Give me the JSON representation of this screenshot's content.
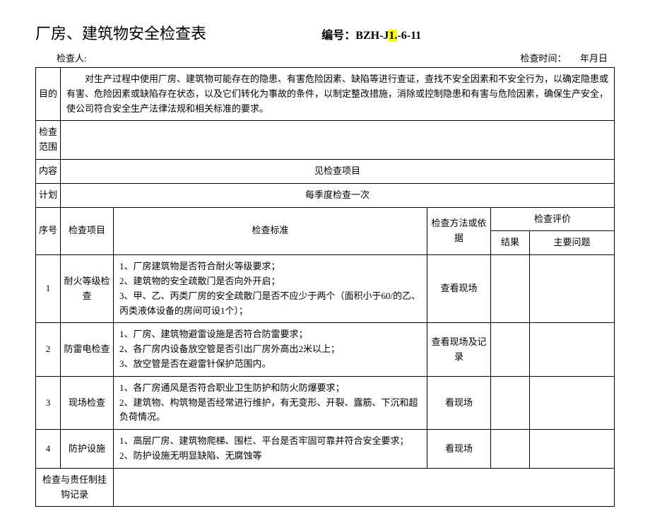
{
  "title": "厂房、建筑物安全检查表",
  "doc_number_label": "编号：",
  "doc_number_prefix": "BZH-J",
  "doc_number_highlight": "1.",
  "doc_number_suffix": "-6-11",
  "sub_header": {
    "inspector_label": "检查人:",
    "time_label": "检查时间：",
    "date_placeholder": "年月日"
  },
  "purpose": {
    "label": "目的",
    "text": "对生产过程中使用厂房、建筑物可能存在的隐患、有害危险因素、缺陷等进行查证，查找不安全因素和不安全行为，以确定隐患或有害、危险因素或缺陷存在状态，以及它们转化为事故的条件，以制定整改措施，消除或控制隐患和有害与危险因素，确保生产安全，使公司符合安全生产法律法规和相关标准的要求。"
  },
  "scope_label": "检查范围",
  "content_label": "内容",
  "content_value": "见检查项目",
  "plan_label": "计划",
  "plan_value": "每季度检查一次",
  "headers": {
    "seq": "序号",
    "item": "检查项目",
    "standard": "检查标准",
    "method": "检查方法或依据",
    "eval": "检查评价",
    "result": "结果",
    "issue": "主要问题"
  },
  "rows": [
    {
      "seq": "1",
      "item": "耐火等级检查",
      "standard": "1、厂房建筑物是否符合耐火等级要求；\n2、建筑物的安全疏散门是否向外开启；\n3、甲、乙、丙类厂房的安全疏散门是否不应少于两个（面积小于60/的乙、丙类液体设备的房间可设1个）；",
      "method": "查看现场"
    },
    {
      "seq": "2",
      "item": "防雷电检查",
      "standard": "1、厂房、建筑物避雷设施是否符合防雷要求；\n2、各厂房内设备放空管是否引出厂房外高出2米以上；\n3、放空管是否在避雷针保护范围内。",
      "method": "查看现场及记录"
    },
    {
      "seq": "3",
      "item": "现场检查",
      "standard": "1、各厂房通风是否符合职业卫生防护和防火防爆要求；\n2、建筑物、构筑物是否经常进行维护，有无变形、开裂、露筋、下沉和超负荷情况。",
      "method": "看现场"
    },
    {
      "seq": "4",
      "item": "防护设施",
      "standard": "1、高层厂房、建筑物爬梯、围栏、平台是否牢固可靠并符合安全要求；\n2、防护设施无明显缺陷、无腐蚀等",
      "method": "看现场"
    }
  ],
  "footer_label": "检查与责任制挂钩记录"
}
